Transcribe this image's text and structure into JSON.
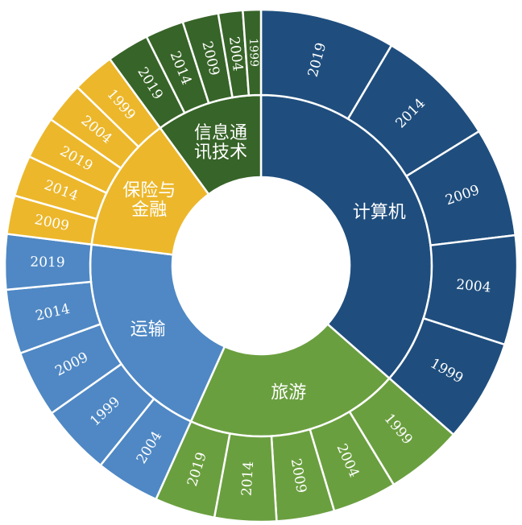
{
  "chart_data": {
    "type": "sunburst",
    "title": "",
    "colors": {
      "计算机": "#1f4e7e",
      "旅游": "#6a9f3f",
      "运输": "#4f88c4",
      "保险与金融": "#ecb72b",
      "信息通讯技术": "#376428"
    },
    "categories": [
      {
        "name": "计算机",
        "lines": [
          "计算机"
        ],
        "children": [
          {
            "name": "2019",
            "value": 10.5
          },
          {
            "name": "2014",
            "value": 9.5
          },
          {
            "name": "2009",
            "value": 8.5
          },
          {
            "name": "2004",
            "value": 8.5
          },
          {
            "name": "1999",
            "value": 8.0
          }
        ]
      },
      {
        "name": "旅游",
        "lines": [
          "旅游"
        ],
        "children": [
          {
            "name": "1999",
            "value": 6.0
          },
          {
            "name": "2004",
            "value": 5.0
          },
          {
            "name": "2009",
            "value": 4.5
          },
          {
            "name": "2014",
            "value": 4.8
          },
          {
            "name": "2019",
            "value": 4.7
          }
        ]
      },
      {
        "name": "运输",
        "lines": [
          "运输"
        ],
        "children": [
          {
            "name": "2004",
            "value": 5.0
          },
          {
            "name": "1999",
            "value": 5.5
          },
          {
            "name": "2009",
            "value": 5.2
          },
          {
            "name": "2014",
            "value": 5.0
          },
          {
            "name": "2019",
            "value": 4.3
          }
        ]
      },
      {
        "name": "保险与金融",
        "lines": [
          "保险与",
          "金融"
        ],
        "children": [
          {
            "name": "2009",
            "value": 3.0
          },
          {
            "name": "2014",
            "value": 3.2
          },
          {
            "name": "2019",
            "value": 3.3
          },
          {
            "name": "2004",
            "value": 3.2
          },
          {
            "name": "1999",
            "value": 3.3
          }
        ]
      },
      {
        "name": "信息通讯技术",
        "lines": [
          "信息通",
          "讯技术"
        ],
        "children": [
          {
            "name": "2019",
            "value": 3.3
          },
          {
            "name": "2014",
            "value": 3.0
          },
          {
            "name": "2009",
            "value": 2.8
          },
          {
            "name": "2004",
            "value": 1.9
          },
          {
            "name": "1999",
            "value": 1.4
          }
        ]
      }
    ]
  }
}
